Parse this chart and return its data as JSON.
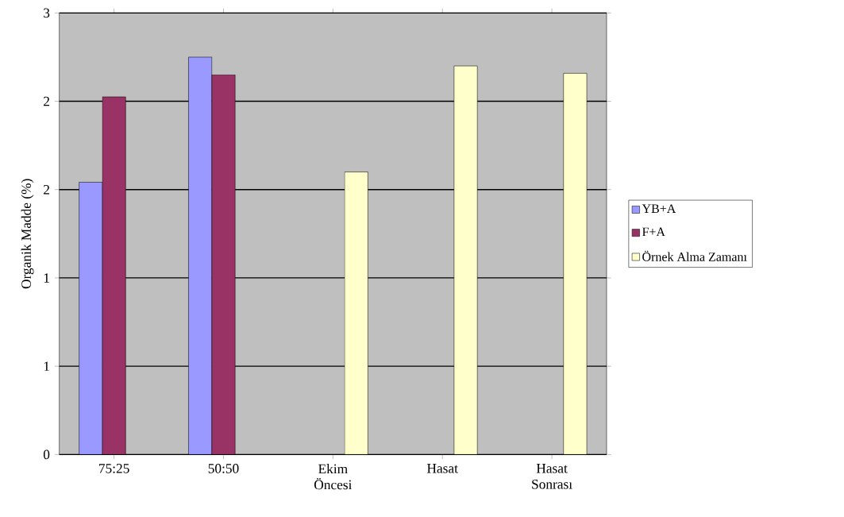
{
  "chart_data": {
    "type": "bar",
    "ylabel": "Organik Madde (%)",
    "categories": [
      "75:25",
      "50:50",
      "Ekim Öncesi",
      "Hasat",
      "Hasat Sonrası"
    ],
    "series": [
      {
        "name": "YB+A",
        "color": "#9999ff",
        "values": [
          1.85,
          2.7,
          null,
          null,
          null
        ]
      },
      {
        "name": "F+A",
        "color": "#993366",
        "values": [
          2.43,
          2.58,
          null,
          null,
          null
        ]
      },
      {
        "name": "Örnek Alma Zamanı",
        "color": "#ffffcc",
        "values": [
          null,
          null,
          1.92,
          2.64,
          2.59
        ]
      }
    ],
    "ylim": [
      0,
      3
    ],
    "yticks": [
      0,
      {
        "value": 0.6,
        "label": "1"
      },
      {
        "value": 1.2,
        "label": "1"
      },
      {
        "value": 1.8,
        "label": "2"
      },
      {
        "value": 2.4,
        "label": "2"
      },
      3
    ],
    "grid": "y",
    "legend": "right"
  }
}
